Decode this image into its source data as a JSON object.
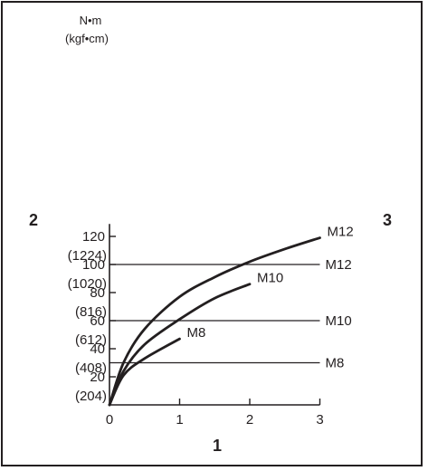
{
  "chart_data": {
    "type": "line",
    "y_unit_label": "N•m",
    "y_unit_label_alt": "(kgf•cm)",
    "yticks": [
      {
        "value": 20,
        "label": "20",
        "sub": "(204)"
      },
      {
        "value": 40,
        "label": "40",
        "sub": "(408)"
      },
      {
        "value": 60,
        "label": "60",
        "sub": "(612)"
      },
      {
        "value": 80,
        "label": "80",
        "sub": "(816)"
      },
      {
        "value": 100,
        "label": "100",
        "sub": "(1020)"
      },
      {
        "value": 120,
        "label": "120",
        "sub": "(1224)"
      }
    ],
    "xticks": [
      {
        "value": 0,
        "label": "0"
      },
      {
        "value": 1,
        "label": "1"
      },
      {
        "value": 2,
        "label": "2"
      },
      {
        "value": 3,
        "label": "3"
      }
    ],
    "xlim": [
      0,
      3
    ],
    "ylim": [
      0,
      125
    ],
    "grid": false,
    "series": [
      {
        "name": "M12",
        "x": [
          0,
          0.2,
          0.5,
          1.0,
          1.5,
          2.0,
          2.5,
          3.0
        ],
        "y": [
          0,
          30,
          54,
          77,
          91,
          102,
          111,
          119
        ]
      },
      {
        "name": "M10",
        "x": [
          0,
          0.2,
          0.5,
          1.0,
          1.5,
          2.0
        ],
        "y": [
          0,
          24,
          43,
          61,
          76,
          86
        ]
      },
      {
        "name": "M8",
        "x": [
          0,
          0.2,
          0.5,
          1.0
        ],
        "y": [
          0,
          21,
          33,
          47
        ]
      }
    ],
    "reference_lines": [
      {
        "name": "M12",
        "y": 100
      },
      {
        "name": "M10",
        "y": 60
      },
      {
        "name": "M8",
        "y": 30
      }
    ],
    "callouts": {
      "x_axis": "1",
      "left": "2",
      "right": "3"
    }
  }
}
